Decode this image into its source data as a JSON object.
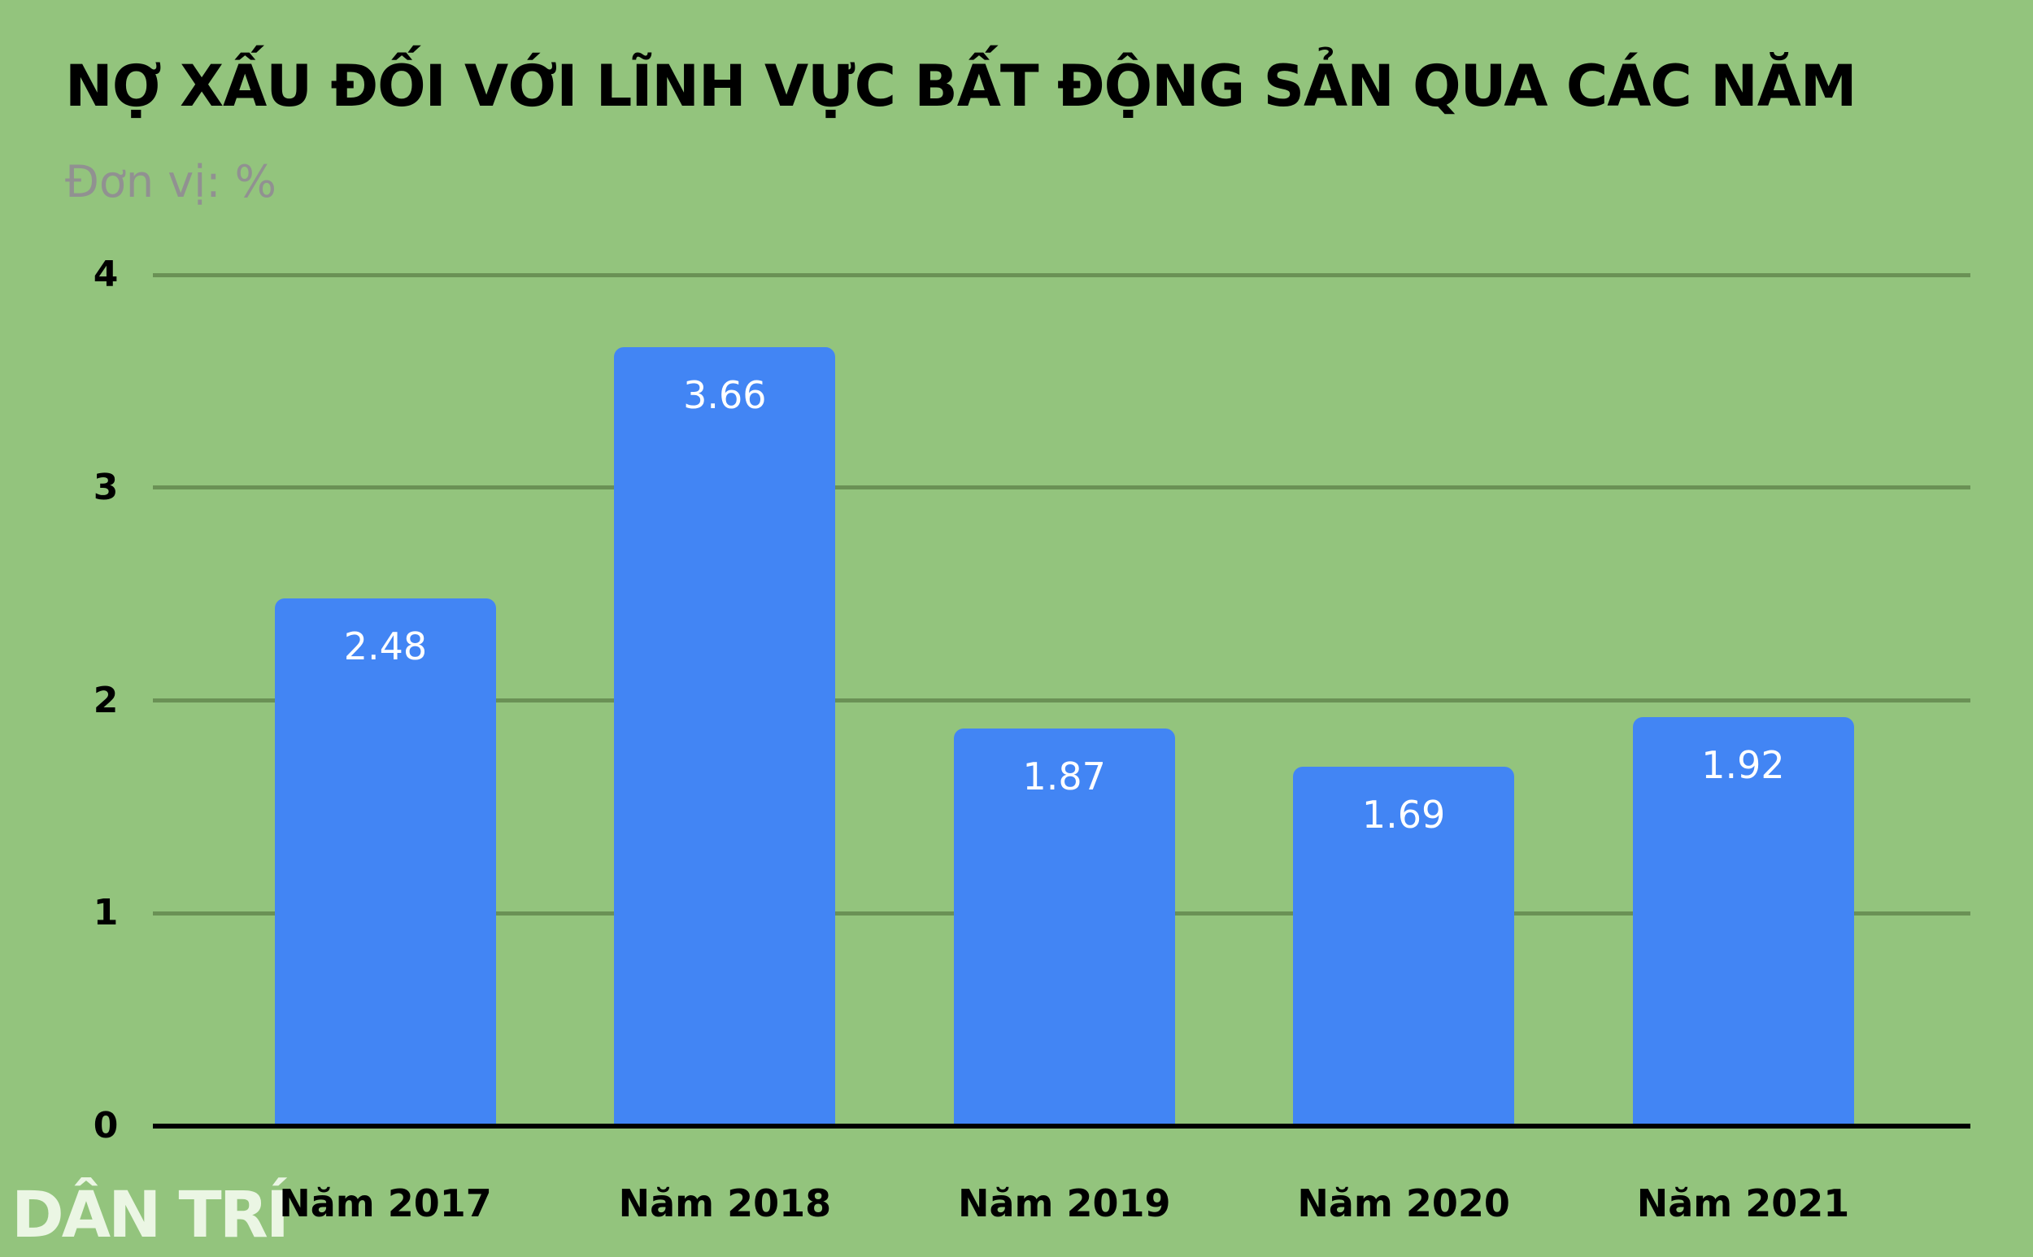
{
  "title": "NỢ XẤU ĐỐI VỚI LĨNH VỰC BẤT ĐỘNG SẢN QUA CÁC NĂM",
  "subtitle": "Đơn vị: %",
  "watermark": "DÂN TRÍ",
  "colors": {
    "background": "#93C47D",
    "bar": "#4285F4",
    "gridline": "#6A9155",
    "axis": "#000000",
    "title_text": "#000000",
    "subtitle_text": "#919191",
    "tick_text": "#000000",
    "value_label_text": "#FFFFFF",
    "watermark_text": "rgba(250,255,246,0.85)"
  },
  "chart_data": {
    "type": "bar",
    "title": "NỢ XẤU ĐỐI VỚI LĨNH VỰC BẤT ĐỘNG SẢN QUA CÁC NĂM",
    "unit_label": "Đơn vị: %",
    "categories": [
      "Năm 2017",
      "Năm 2018",
      "Năm 2019",
      "Năm 2020",
      "Năm 2021"
    ],
    "values": [
      2.48,
      3.66,
      1.87,
      1.69,
      1.92
    ],
    "value_labels": [
      "2.48",
      "3.66",
      "1.87",
      "1.69",
      "1.92"
    ],
    "xlabel": "",
    "ylabel": "",
    "ylim": [
      0,
      4
    ],
    "yticks": [
      0,
      1,
      2,
      3,
      4
    ],
    "grid": true,
    "legend": false,
    "value_labels_position": "inside-top",
    "bar_color": "#4285F4"
  }
}
